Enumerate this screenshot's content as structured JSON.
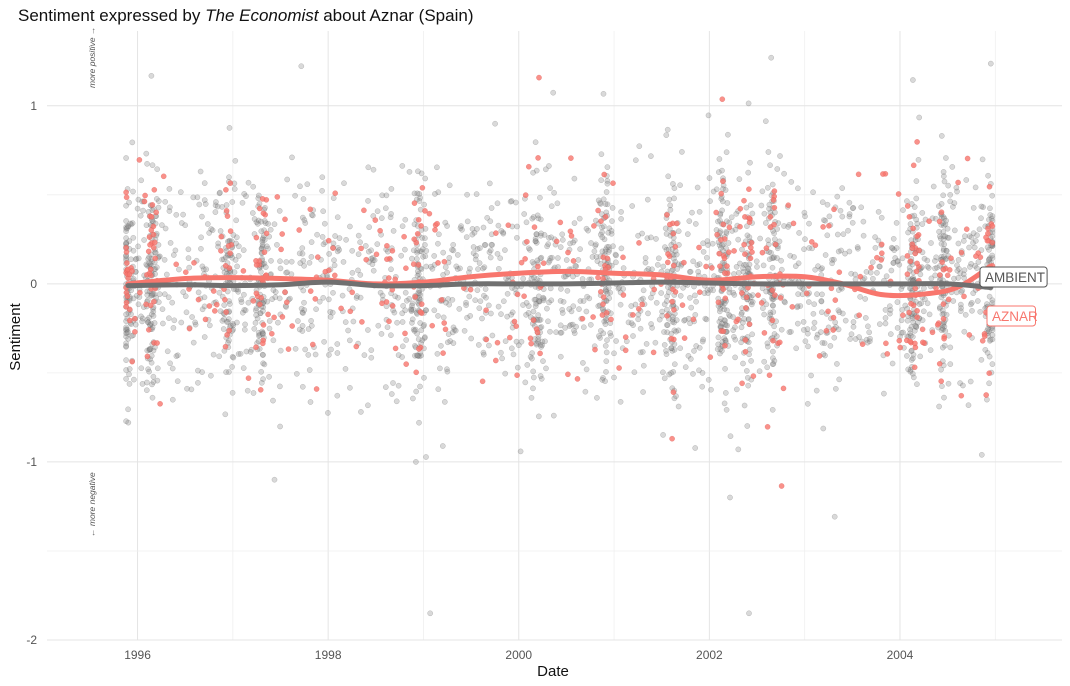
{
  "chart_data": {
    "type": "scatter",
    "title": {
      "prefix": "Sentiment expressed by ",
      "italic": "The Economist",
      "suffix": " about Aznar (Spain)"
    },
    "xlabel": "Date",
    "ylabel": "Sentiment",
    "xlim": [
      1995.05,
      2005.7
    ],
    "ylim": [
      -2.0,
      1.42
    ],
    "x_ticks": [
      1996,
      1998,
      2000,
      2002,
      2004
    ],
    "x_tick_labels": [
      "1996",
      "1998",
      "2000",
      "2002",
      "2004"
    ],
    "y_ticks": [
      -2,
      -1,
      0,
      1
    ],
    "y_tick_labels": [
      "-2",
      "-1",
      "0",
      "1"
    ],
    "grid": true,
    "annotations": {
      "top": "more positive →",
      "bottom": "← more negative"
    },
    "series": [
      {
        "name": "AMBIENT",
        "color": "#707070",
        "smooth": [
          [
            1995.9,
            -0.01
          ],
          [
            1996.5,
            -0.005
          ],
          [
            1997.0,
            -0.01
          ],
          [
            1997.5,
            -0.005
          ],
          [
            1998.0,
            0.01
          ],
          [
            1998.5,
            -0.01
          ],
          [
            1999.0,
            -0.01
          ],
          [
            1999.5,
            0.0
          ],
          [
            2000.0,
            0.0
          ],
          [
            2000.5,
            0.0
          ],
          [
            2001.0,
            0.005
          ],
          [
            2001.5,
            0.01
          ],
          [
            2002.0,
            0.005
          ],
          [
            2002.5,
            0.0
          ],
          [
            2003.0,
            0.0
          ],
          [
            2003.5,
            0.0
          ],
          [
            2004.0,
            0.0
          ],
          [
            2004.5,
            0.0
          ],
          [
            2004.95,
            -0.02
          ]
        ]
      },
      {
        "name": "AZNAR",
        "color": "#f8766d",
        "smooth": [
          [
            1995.9,
            0.0
          ],
          [
            1996.5,
            0.03
          ],
          [
            1997.0,
            0.035
          ],
          [
            1997.5,
            0.03
          ],
          [
            1998.0,
            0.02
          ],
          [
            1998.5,
            0.0
          ],
          [
            1999.0,
            0.01
          ],
          [
            1999.5,
            0.04
          ],
          [
            2000.0,
            0.06
          ],
          [
            2000.5,
            0.07
          ],
          [
            2001.0,
            0.06
          ],
          [
            2001.5,
            0.05
          ],
          [
            2002.0,
            0.02
          ],
          [
            2002.5,
            0.04
          ],
          [
            2003.0,
            0.04
          ],
          [
            2003.4,
            0.0
          ],
          [
            2003.8,
            -0.06
          ],
          [
            2004.2,
            -0.06
          ],
          [
            2004.6,
            -0.02
          ],
          [
            2004.95,
            0.1
          ]
        ]
      }
    ],
    "points": {
      "ambient_count": 2600,
      "aznar_count": 520,
      "x_range": [
        1995.88,
        2004.97
      ],
      "y_range": [
        -1.85,
        1.27
      ]
    }
  }
}
